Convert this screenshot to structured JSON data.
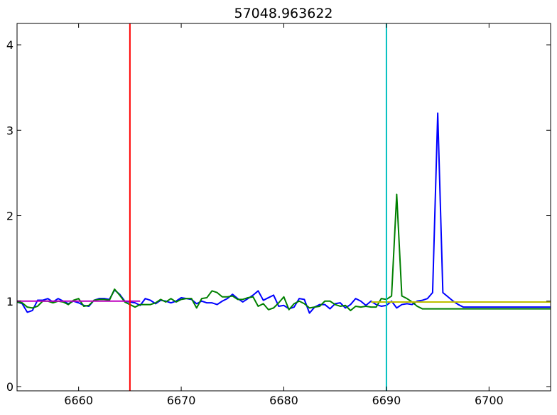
{
  "chart_data": {
    "type": "line",
    "title": "57048.963622",
    "xlabel": "",
    "ylabel": "",
    "xlim": [
      6654,
      6706
    ],
    "ylim": [
      -0.05,
      4.25
    ],
    "xticks": [
      6660,
      6670,
      6680,
      6690,
      6700
    ],
    "yticks": [
      0,
      1,
      2,
      3,
      4
    ],
    "grid": false,
    "legend": "none",
    "colors": {
      "series_blue": "#0000ff",
      "series_green": "#008000",
      "hline_magenta": "#bf00bf",
      "hline_yellow": "#bfbf00",
      "vline_red": "#ff0000",
      "vline_cyan": "#00bfbf"
    },
    "series": [
      {
        "color": "blue",
        "x": [
          6654.0,
          6654.5,
          6655.0,
          6655.5,
          6656.0,
          6656.5,
          6657.0,
          6657.5,
          6658.0,
          6658.5,
          6659.0,
          6659.5,
          6660.0,
          6660.5,
          6661.0,
          6661.5,
          6662.0,
          6662.5,
          6663.0,
          6663.5,
          6664.0,
          6664.5,
          6665.0,
          6665.5,
          6666.0,
          6666.5,
          6667.0,
          6667.5,
          6668.0,
          6668.5,
          6669.0,
          6669.5,
          6670.0,
          6670.5,
          6671.0,
          6671.5,
          6672.0,
          6672.5,
          6673.0,
          6673.5,
          6674.0,
          6674.5,
          6675.0,
          6675.5,
          6676.0,
          6676.5,
          6677.0,
          6677.5,
          6678.0,
          6678.5,
          6679.0,
          6679.5,
          6680.0,
          6680.5,
          6681.0,
          6681.5,
          6682.0,
          6682.5,
          6683.0,
          6683.5,
          6684.0,
          6684.5,
          6685.0,
          6685.5,
          6686.0,
          6686.5,
          6687.0,
          6687.5,
          6688.0,
          6688.5,
          6689.0,
          6689.5,
          6690.0,
          6690.5,
          6691.0,
          6691.5,
          6692.0,
          6692.5,
          6693.0,
          6693.5,
          6694.0,
          6694.5,
          6695.0,
          6695.5,
          6696.0,
          6696.5,
          6697.0,
          6697.5,
          6698.0,
          6698.5,
          6699.0,
          6699.5,
          6700.0,
          6700.5,
          6701.0,
          6701.5,
          6702.0,
          6702.5,
          6703.0,
          6703.5,
          6704.0,
          6704.5,
          6705.0,
          6705.5,
          6706.0
        ],
        "y": [
          0.99,
          0.97,
          0.87,
          0.89,
          1.01,
          1.01,
          1.03,
          0.99,
          1.03,
          1.0,
          0.97,
          1.0,
          0.98,
          0.95,
          0.94,
          1.01,
          1.03,
          1.03,
          1.02,
          1.13,
          1.08,
          1.0,
          0.99,
          0.98,
          0.95,
          1.03,
          1.01,
          0.97,
          1.01,
          1.0,
          0.98,
          1.0,
          1.04,
          1.03,
          1.02,
          0.97,
          1.0,
          0.98,
          0.98,
          0.96,
          1.0,
          1.03,
          1.08,
          1.03,
          0.99,
          1.03,
          1.07,
          1.12,
          1.01,
          1.04,
          1.07,
          0.94,
          0.95,
          0.91,
          0.93,
          1.03,
          1.02,
          0.86,
          0.93,
          0.96,
          0.96,
          0.91,
          0.97,
          0.98,
          0.92,
          0.96,
          1.03,
          1.0,
          0.95,
          1.0,
          0.96,
          0.94,
          0.95,
          1.0,
          0.92,
          0.96,
          0.97,
          0.96,
          1.0,
          1.01,
          1.03,
          1.1,
          3.2,
          1.1,
          1.05,
          1.0,
          0.96,
          0.93,
          0.93,
          0.93,
          0.93,
          0.93,
          0.93,
          0.93,
          0.93,
          0.93,
          0.93,
          0.93,
          0.93,
          0.93,
          0.93,
          0.93,
          0.93,
          0.93,
          0.93
        ]
      },
      {
        "color": "green",
        "x": [
          6654.0,
          6654.5,
          6655.0,
          6655.5,
          6656.0,
          6656.5,
          6657.0,
          6657.5,
          6658.0,
          6658.5,
          6659.0,
          6659.5,
          6660.0,
          6660.5,
          6661.0,
          6661.5,
          6662.0,
          6662.5,
          6663.0,
          6663.5,
          6664.0,
          6664.5,
          6665.0,
          6665.5,
          6666.0,
          6666.5,
          6667.0,
          6667.5,
          6668.0,
          6668.5,
          6669.0,
          6669.5,
          6670.0,
          6670.5,
          6671.0,
          6671.5,
          6672.0,
          6672.5,
          6673.0,
          6673.5,
          6674.0,
          6674.5,
          6675.0,
          6675.5,
          6676.0,
          6676.5,
          6677.0,
          6677.5,
          6678.0,
          6678.5,
          6679.0,
          6679.5,
          6680.0,
          6680.5,
          6681.0,
          6681.5,
          6682.0,
          6682.5,
          6683.0,
          6683.5,
          6684.0,
          6684.5,
          6685.0,
          6685.5,
          6686.0,
          6686.5,
          6687.0,
          6687.5,
          6688.0,
          6688.5,
          6689.0,
          6689.5,
          6690.0,
          6690.5,
          6691.0,
          6691.5,
          6692.0,
          6692.5,
          6693.0,
          6693.5,
          6694.0,
          6694.5,
          6695.0,
          6695.5,
          6696.0,
          6696.5,
          6697.0,
          6697.5,
          6698.0,
          6698.5,
          6699.0,
          6699.5,
          6700.0,
          6700.5,
          6701.0,
          6701.5,
          6702.0,
          6702.5,
          6703.0,
          6703.5,
          6704.0,
          6704.5,
          6705.0,
          6705.5,
          6706.0
        ],
        "y": [
          0.99,
          0.98,
          0.93,
          0.92,
          0.94,
          1.0,
          1.0,
          0.98,
          1.0,
          0.99,
          0.96,
          1.01,
          1.03,
          0.94,
          0.95,
          1.01,
          1.02,
          1.02,
          1.01,
          1.14,
          1.07,
          0.99,
          0.96,
          0.93,
          0.96,
          0.96,
          0.96,
          0.98,
          1.02,
          0.99,
          1.03,
          0.99,
          1.02,
          1.03,
          1.03,
          0.92,
          1.03,
          1.04,
          1.12,
          1.1,
          1.05,
          1.05,
          1.06,
          1.02,
          1.02,
          1.04,
          1.05,
          0.94,
          0.97,
          0.9,
          0.92,
          0.98,
          1.05,
          0.9,
          0.97,
          1.0,
          0.97,
          0.92,
          0.93,
          0.94,
          1.0,
          1.0,
          0.96,
          0.94,
          0.95,
          0.89,
          0.94,
          0.93,
          0.94,
          0.93,
          0.93,
          1.03,
          1.02,
          1.06,
          2.25,
          1.06,
          1.03,
          0.99,
          0.94,
          0.91,
          0.91,
          0.91,
          0.91,
          0.91,
          0.91,
          0.91,
          0.91,
          0.91,
          0.91,
          0.91,
          0.91,
          0.91,
          0.91,
          0.91,
          0.91,
          0.91,
          0.91,
          0.91,
          0.91,
          0.91,
          0.91,
          0.91,
          0.91,
          0.91,
          0.91
        ]
      }
    ],
    "hlines": [
      {
        "color": "magenta",
        "y": 1.0,
        "xmin": 6654,
        "xmax": 6666
      },
      {
        "color": "yellow",
        "y": 0.99,
        "xmin": 6688.5,
        "xmax": 6706
      }
    ],
    "vlines": [
      {
        "color": "red",
        "x": 6665
      },
      {
        "color": "cyan",
        "x": 6690
      }
    ]
  }
}
